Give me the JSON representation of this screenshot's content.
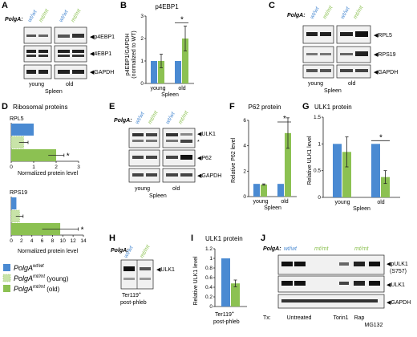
{
  "colors": {
    "wt": "#4a8ad2",
    "mt": "#8cc152",
    "mt_light": "#c8e3a8",
    "bar_outline": "#333333"
  },
  "common": {
    "polga_label": "PolgA:",
    "wt": "wt/wt",
    "mt": "mt/mt",
    "young": "young",
    "old": "old",
    "spleen": "Spleen",
    "star": "*"
  },
  "panel_letters": {
    "A": "A",
    "B": "B",
    "C": "C",
    "D": "D",
    "E": "E",
    "F": "F",
    "G": "G",
    "H": "H",
    "I": "I",
    "J": "J"
  },
  "panelA": {
    "bands": [
      "p4EBP1",
      "4EBP1",
      "GAPDH"
    ]
  },
  "panelC": {
    "bands": [
      "RPL5",
      "RPS19",
      "GAPDH"
    ]
  },
  "panelE": {
    "bands": [
      "ULK1",
      "P62",
      "GAPDH"
    ],
    "extra_star": "*"
  },
  "panelH": {
    "bands": [
      "ULK1"
    ],
    "caption1": "Ter119",
    "caption_sup": "+",
    "caption2": "post-phleb"
  },
  "panelJ": {
    "bands": [
      "pULK1",
      "ULK1",
      "GAPDH"
    ],
    "band_sub": "(S757)",
    "tx_label": "Tx:",
    "tx": [
      "Untreated",
      "Torin1",
      "Rap",
      "MG132"
    ]
  },
  "chart_data": [
    {
      "panel": "B",
      "type": "bar",
      "title": "p4EBP1",
      "ylabel": "p4EBP1/GAPDH",
      "ylabel2": "(normalized to WT)",
      "ylim": [
        0,
        3
      ],
      "yticks": [
        "0",
        "1",
        "2",
        "3"
      ],
      "groups": [
        "young",
        "old"
      ],
      "xlabel": "Spleen",
      "series": [
        {
          "key": "wt",
          "values": [
            1.0,
            1.0
          ],
          "err": [
            0,
            0
          ]
        },
        {
          "key": "mt",
          "values": [
            1.0,
            2.0
          ],
          "err": [
            0.3,
            0.55
          ]
        }
      ],
      "significance": [
        {
          "group": 1,
          "label": "*"
        }
      ]
    },
    {
      "panel": "F",
      "type": "bar",
      "title": "P62 protein",
      "ylabel": "Relative P62 level",
      "ylim": [
        0,
        6
      ],
      "yticks": [
        "0",
        "2",
        "4",
        "6"
      ],
      "groups": [
        "young",
        "old"
      ],
      "xlabel": "Spleen",
      "series": [
        {
          "key": "wt",
          "values": [
            1.0,
            1.0
          ],
          "err": [
            0,
            0
          ]
        },
        {
          "key": "mt",
          "values": [
            0.95,
            5.0
          ],
          "err": [
            0.05,
            1.2
          ]
        }
      ],
      "significance": [
        {
          "group": 1,
          "label": "*"
        }
      ]
    },
    {
      "panel": "G",
      "type": "bar",
      "title": "ULK1 protein",
      "ylabel": "Relative ULK1 level",
      "ylim": [
        0,
        1.5
      ],
      "yticks": [
        "0",
        "0.5",
        "1",
        "1.5"
      ],
      "groups": [
        "young",
        "old"
      ],
      "xlabel": "Spleen",
      "series": [
        {
          "key": "wt",
          "values": [
            1.0,
            1.0
          ],
          "err": [
            0,
            0
          ]
        },
        {
          "key": "mt",
          "values": [
            0.85,
            0.38
          ],
          "err": [
            0.28,
            0.12
          ]
        }
      ],
      "significance": [
        {
          "group": 1,
          "label": "*"
        }
      ]
    },
    {
      "panel": "I",
      "type": "bar",
      "title": "ULK1 protein",
      "ylabel": "Relative ULK1 level",
      "ylim": [
        0,
        1.2
      ],
      "yticks": [
        "0",
        "0.2",
        "0.4",
        "0.6",
        "0.8",
        "1",
        "1.2"
      ],
      "groups": [
        "Ter119+ post-phleb"
      ],
      "series": [
        {
          "key": "wt",
          "values": [
            1.0
          ],
          "err": [
            0
          ]
        },
        {
          "key": "mt",
          "values": [
            0.48
          ],
          "err": [
            0.07
          ]
        }
      ]
    },
    {
      "panel": "D",
      "type": "bar",
      "orientation": "horizontal",
      "title": "Ribosomal proteins",
      "xlabel": "Normalized protein level",
      "subplots": [
        {
          "name": "RPL5",
          "xlim": [
            0,
            3
          ],
          "xticks": [
            "0",
            "1",
            "2",
            "3"
          ],
          "values": {
            "wt": 1.0,
            "mt_young": 0.55,
            "mt_old": 2.0
          },
          "err": {
            "wt": 0,
            "mt_young": 0.2,
            "mt_old": 0.35
          },
          "significance": "*"
        },
        {
          "name": "RPS19",
          "xlim": [
            0,
            14
          ],
          "xticks": [
            "0",
            "2",
            "4",
            "6",
            "8",
            "10",
            "12",
            "14"
          ],
          "values": {
            "wt": 1.0,
            "mt_young": 1.6,
            "mt_old": 9.5
          },
          "err": {
            "wt": 0,
            "mt_young": 0.7,
            "mt_old": 3.5
          },
          "significance": "*"
        }
      ],
      "legend": [
        {
          "key": "wt",
          "base": "PolgA",
          "sup": "wt/wt",
          "extra": ""
        },
        {
          "key": "mt_young",
          "base": "PolgA",
          "sup": "mt/mt",
          "extra": " (young)"
        },
        {
          "key": "mt_old",
          "base": "PolgA",
          "sup": "mt/mt",
          "extra": " (old)"
        }
      ]
    }
  ]
}
